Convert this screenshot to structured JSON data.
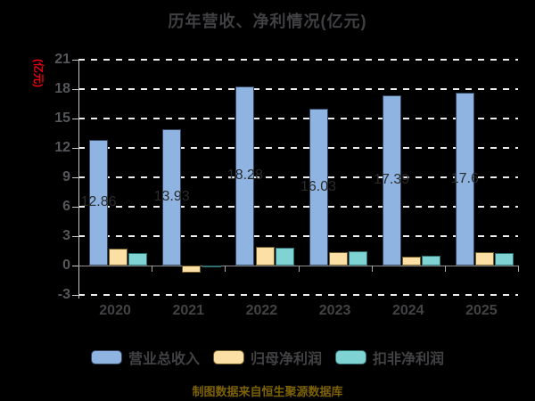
{
  "title": "历年营收、净利情况(亿元)",
  "y_axis": {
    "label": "(亿元)",
    "label_color": "#e8000f",
    "ticks": [
      21,
      18,
      15,
      12,
      9,
      6,
      3,
      0,
      -3
    ]
  },
  "x_axis": {
    "categories": [
      "2020",
      "2021",
      "2022",
      "2023",
      "2024",
      "2025"
    ]
  },
  "legend": [
    {
      "label": "营业总收入",
      "color": "#8FB4E2",
      "border": "#31455e"
    },
    {
      "label": "归母净利润",
      "color": "#FBDFA4",
      "border": "#6e5a28"
    },
    {
      "label": "扣非净利润",
      "color": "#7FD3D3",
      "border": "#2d6e6e"
    }
  ],
  "footer": {
    "text": "制图数据来自恒生聚源数据库",
    "color": "#7c6106"
  },
  "colors": {
    "background": "#000000",
    "title_text": "#404043",
    "tick_text": "#56575b",
    "gridline": "#ececec",
    "bar_value_text": "#2b2b2b"
  },
  "chart_data": {
    "type": "bar",
    "title": "历年营收、净利情况(亿元)",
    "ylabel": "(亿元)",
    "xlabel": "",
    "categories": [
      "2020",
      "2021",
      "2022",
      "2023",
      "2024",
      "2025"
    ],
    "series": [
      {
        "name": "营业总收入",
        "color": "#8FB4E2",
        "border": "#31455e",
        "values": [
          12.86,
          13.93,
          18.28,
          16.03,
          17.39,
          17.6
        ],
        "data_labels": [
          "12.86",
          "13.93",
          "18.28",
          "16.03",
          "17.39",
          "17.6"
        ]
      },
      {
        "name": "归母净利润",
        "color": "#FBDFA4",
        "border": "#6e5a28",
        "values": [
          1.73,
          -0.74,
          1.94,
          1.32,
          0.95,
          1.32
        ],
        "data_labels": []
      },
      {
        "name": "扣非净利润",
        "color": "#7FD3D3",
        "border": "#2d6e6e",
        "values": [
          1.27,
          -0.1,
          1.85,
          1.42,
          0.98,
          1.27
        ],
        "data_labels": []
      }
    ],
    "ylim": [
      -3,
      21
    ],
    "ytick_step": 3,
    "grid": "horizontal-dashed",
    "legend_position": "bottom"
  }
}
